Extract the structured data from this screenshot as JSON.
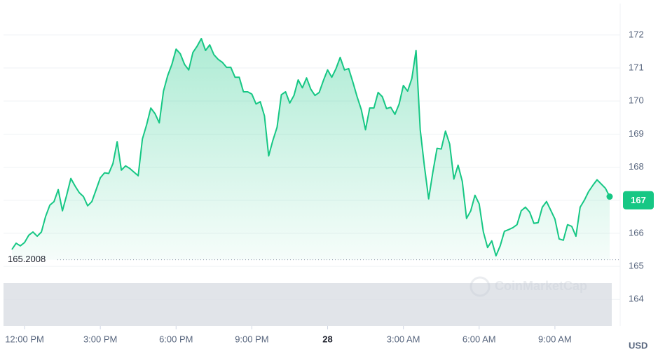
{
  "chart_data": {
    "type": "area-line",
    "color": "#16c784",
    "grid": true,
    "unit": "USD",
    "watermark": "CoinMarketCap",
    "reference_value": 165.2008,
    "current_value": 167,
    "xlim": [
      -50,
      1415
    ],
    "ylim": [
      163.2,
      172.95
    ],
    "xticks": [
      {
        "value": 0,
        "label": "12:00 PM"
      },
      {
        "value": 180,
        "label": "3:00 PM"
      },
      {
        "value": 360,
        "label": "6:00 PM"
      },
      {
        "value": 540,
        "label": "9:00 PM"
      },
      {
        "value": 720,
        "label": "28"
      },
      {
        "value": 900,
        "label": "3:00 AM"
      },
      {
        "value": 1080,
        "label": "6:00 AM"
      },
      {
        "value": 1260,
        "label": "9:00 AM"
      }
    ],
    "yticks": [
      164,
      165,
      166,
      167,
      168,
      169,
      170,
      171,
      172
    ],
    "x": [
      -30,
      -20,
      -10,
      0,
      10,
      20,
      30,
      40,
      50,
      60,
      70,
      80,
      90,
      100,
      110,
      120,
      130,
      140,
      150,
      160,
      170,
      180,
      190,
      200,
      210,
      220,
      230,
      240,
      250,
      260,
      270,
      280,
      290,
      300,
      310,
      320,
      330,
      340,
      350,
      360,
      370,
      380,
      390,
      400,
      410,
      420,
      430,
      440,
      450,
      460,
      470,
      480,
      490,
      500,
      510,
      520,
      530,
      540,
      550,
      560,
      570,
      580,
      590,
      600,
      610,
      620,
      630,
      640,
      650,
      660,
      670,
      680,
      690,
      700,
      710,
      720,
      730,
      740,
      750,
      760,
      770,
      780,
      790,
      800,
      810,
      820,
      830,
      840,
      850,
      860,
      870,
      880,
      890,
      900,
      910,
      920,
      930,
      940,
      950,
      960,
      970,
      980,
      990,
      1000,
      1010,
      1020,
      1030,
      1040,
      1050,
      1060,
      1070,
      1080,
      1090,
      1100,
      1110,
      1120,
      1130,
      1140,
      1150,
      1160,
      1170,
      1180,
      1190,
      1200,
      1210,
      1220,
      1230,
      1240,
      1250,
      1260,
      1270,
      1280,
      1290,
      1300,
      1310,
      1320,
      1330,
      1340,
      1350,
      1360,
      1370,
      1380,
      1390
    ],
    "values": [
      165.51,
      165.7,
      165.62,
      165.72,
      165.94,
      166.04,
      165.91,
      166.04,
      166.51,
      166.85,
      166.96,
      167.32,
      166.68,
      167.15,
      167.66,
      167.43,
      167.23,
      167.11,
      166.83,
      166.96,
      167.32,
      167.68,
      167.83,
      167.81,
      168.11,
      168.77,
      167.91,
      168.04,
      167.96,
      167.85,
      167.74,
      168.85,
      169.28,
      169.79,
      169.62,
      169.34,
      170.3,
      170.77,
      171.11,
      171.57,
      171.43,
      171.11,
      170.94,
      171.47,
      171.66,
      171.89,
      171.53,
      171.7,
      171.4,
      171.26,
      171.17,
      171.02,
      171.02,
      170.72,
      170.72,
      170.28,
      170.28,
      170.21,
      169.91,
      169.98,
      169.55,
      168.34,
      168.81,
      169.21,
      170.19,
      170.28,
      169.94,
      170.17,
      170.64,
      170.4,
      170.7,
      170.36,
      170.17,
      170.26,
      170.62,
      170.94,
      170.72,
      170.98,
      171.32,
      170.94,
      170.98,
      170.57,
      170.13,
      169.74,
      169.13,
      169.79,
      169.79,
      170.26,
      170.13,
      169.77,
      169.81,
      169.6,
      169.91,
      170.47,
      170.3,
      170.68,
      171.53,
      169.13,
      168.02,
      167.04,
      167.85,
      168.57,
      168.55,
      169.09,
      168.7,
      167.64,
      168.06,
      167.57,
      166.45,
      166.68,
      167.15,
      166.89,
      166.04,
      165.57,
      165.77,
      165.32,
      165.62,
      166.06,
      166.11,
      166.17,
      166.26,
      166.68,
      166.79,
      166.64,
      166.3,
      166.32,
      166.79,
      166.96,
      166.7,
      166.43,
      165.83,
      165.79,
      166.26,
      166.21,
      165.91,
      166.79,
      167.0,
      167.26,
      167.45,
      167.62,
      167.49,
      167.36,
      167.11
    ]
  }
}
